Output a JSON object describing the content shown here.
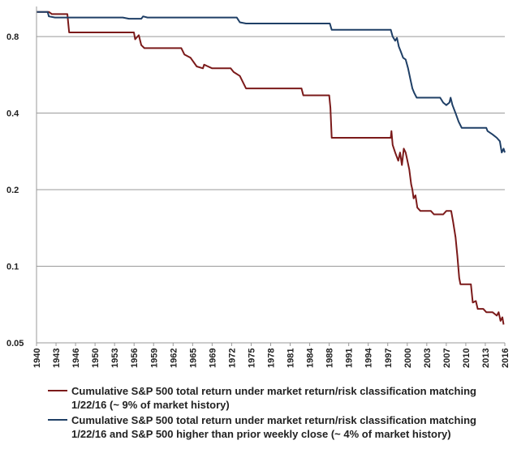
{
  "chart_data": {
    "type": "line",
    "yscale": "log",
    "ylim": [
      0.05,
      1.05
    ],
    "xlim": [
      1940,
      2016
    ],
    "yticks": [
      {
        "value": 0.8,
        "label": "0.8"
      },
      {
        "value": 0.4,
        "label": "0.4"
      },
      {
        "value": 0.2,
        "label": "0.2"
      },
      {
        "value": 0.1,
        "label": "0.1"
      },
      {
        "value": 0.05,
        "label": "0.05"
      }
    ],
    "xticks": [
      "1940",
      "1943",
      "1946",
      "1950",
      "1953",
      "1956",
      "1959",
      "1962",
      "1965",
      "1969",
      "1972",
      "1975",
      "1978",
      "1981",
      "1984",
      "1988",
      "1991",
      "1994",
      "1997",
      "2000",
      "2003",
      "2007",
      "2010",
      "2013",
      "2016"
    ],
    "grid": true,
    "legend_position": "bottom",
    "series": [
      {
        "name": "Cumulative S&P 500 total return under market return/risk classification matching 1/22/16 (~ 9% of market history)",
        "legend_lines": [
          "Cumulative S&P 500 total return under market return/risk classification matching",
          "1/22/16 (~ 9% of market history)"
        ],
        "color": "#7b1a1a",
        "points": [
          [
            1940.0,
            1.0
          ],
          [
            1942.0,
            1.0
          ],
          [
            1942.5,
            0.98
          ],
          [
            1945.0,
            0.98
          ],
          [
            1945.3,
            0.83
          ],
          [
            1955.8,
            0.83
          ],
          [
            1956.0,
            0.78
          ],
          [
            1956.6,
            0.81
          ],
          [
            1957.0,
            0.74
          ],
          [
            1957.5,
            0.72
          ],
          [
            1963.5,
            0.72
          ],
          [
            1964.0,
            0.68
          ],
          [
            1965.0,
            0.66
          ],
          [
            1966.0,
            0.61
          ],
          [
            1967.0,
            0.6
          ],
          [
            1967.2,
            0.62
          ],
          [
            1968.5,
            0.6
          ],
          [
            1971.5,
            0.6
          ],
          [
            1972.0,
            0.58
          ],
          [
            1973.0,
            0.56
          ],
          [
            1974.0,
            0.5
          ],
          [
            1983.0,
            0.5
          ],
          [
            1983.3,
            0.47
          ],
          [
            1987.5,
            0.47
          ],
          [
            1987.7,
            0.42
          ],
          [
            1987.9,
            0.32
          ],
          [
            1997.5,
            0.32
          ],
          [
            1997.6,
            0.34
          ],
          [
            1997.8,
            0.3
          ],
          [
            1998.2,
            0.28
          ],
          [
            1998.7,
            0.26
          ],
          [
            1999.0,
            0.28
          ],
          [
            1999.3,
            0.25
          ],
          [
            1999.6,
            0.29
          ],
          [
            1999.9,
            0.28
          ],
          [
            2000.2,
            0.26
          ],
          [
            2000.5,
            0.24
          ],
          [
            2000.8,
            0.21
          ],
          [
            2001.0,
            0.2
          ],
          [
            2001.2,
            0.185
          ],
          [
            2001.5,
            0.19
          ],
          [
            2001.8,
            0.17
          ],
          [
            2002.3,
            0.165
          ],
          [
            2004.0,
            0.165
          ],
          [
            2004.5,
            0.16
          ],
          [
            2006.0,
            0.16
          ],
          [
            2006.5,
            0.165
          ],
          [
            2007.3,
            0.165
          ],
          [
            2007.6,
            0.15
          ],
          [
            2008.0,
            0.13
          ],
          [
            2008.3,
            0.11
          ],
          [
            2008.6,
            0.09
          ],
          [
            2008.8,
            0.085
          ],
          [
            2010.5,
            0.085
          ],
          [
            2010.8,
            0.072
          ],
          [
            2011.3,
            0.073
          ],
          [
            2011.6,
            0.068
          ],
          [
            2012.5,
            0.068
          ],
          [
            2013.0,
            0.066
          ],
          [
            2014.0,
            0.066
          ],
          [
            2014.7,
            0.064
          ],
          [
            2015.0,
            0.066
          ],
          [
            2015.3,
            0.061
          ],
          [
            2015.6,
            0.063
          ],
          [
            2015.8,
            0.059
          ]
        ]
      },
      {
        "name": "Cumulative S&P 500 total return under market return/risk classification matching 1/22/16 and S&P 500 higher than prior weekly close (~ 4% of market history)",
        "legend_lines": [
          "Cumulative S&P 500 total return under market return/risk classification matching",
          "1/22/16 and S&P 500 higher than prior weekly close (~ 4% of market history)"
        ],
        "color": "#1f3f66",
        "points": [
          [
            1940.0,
            1.0
          ],
          [
            1941.8,
            1.0
          ],
          [
            1942.0,
            0.96
          ],
          [
            1943.0,
            0.95
          ],
          [
            1954.0,
            0.95
          ],
          [
            1955.0,
            0.94
          ],
          [
            1957.0,
            0.94
          ],
          [
            1957.3,
            0.96
          ],
          [
            1958.0,
            0.95
          ],
          [
            1972.5,
            0.95
          ],
          [
            1973.0,
            0.91
          ],
          [
            1974.0,
            0.9
          ],
          [
            1987.6,
            0.9
          ],
          [
            1987.9,
            0.85
          ],
          [
            1997.5,
            0.85
          ],
          [
            1997.8,
            0.8
          ],
          [
            1998.2,
            0.77
          ],
          [
            1998.5,
            0.79
          ],
          [
            1998.8,
            0.73
          ],
          [
            1999.1,
            0.7
          ],
          [
            1999.5,
            0.66
          ],
          [
            1999.9,
            0.65
          ],
          [
            2000.3,
            0.6
          ],
          [
            2000.7,
            0.54
          ],
          [
            2001.0,
            0.5
          ],
          [
            2001.3,
            0.48
          ],
          [
            2001.7,
            0.46
          ],
          [
            2005.5,
            0.46
          ],
          [
            2006.0,
            0.44
          ],
          [
            2006.5,
            0.43
          ],
          [
            2007.0,
            0.44
          ],
          [
            2007.2,
            0.46
          ],
          [
            2007.5,
            0.43
          ],
          [
            2008.0,
            0.4
          ],
          [
            2008.5,
            0.37
          ],
          [
            2009.0,
            0.35
          ],
          [
            2013.0,
            0.35
          ],
          [
            2013.2,
            0.34
          ],
          [
            2014.0,
            0.33
          ],
          [
            2014.7,
            0.32
          ],
          [
            2015.2,
            0.31
          ],
          [
            2015.5,
            0.28
          ],
          [
            2015.8,
            0.29
          ],
          [
            2016.0,
            0.28
          ]
        ]
      }
    ]
  }
}
